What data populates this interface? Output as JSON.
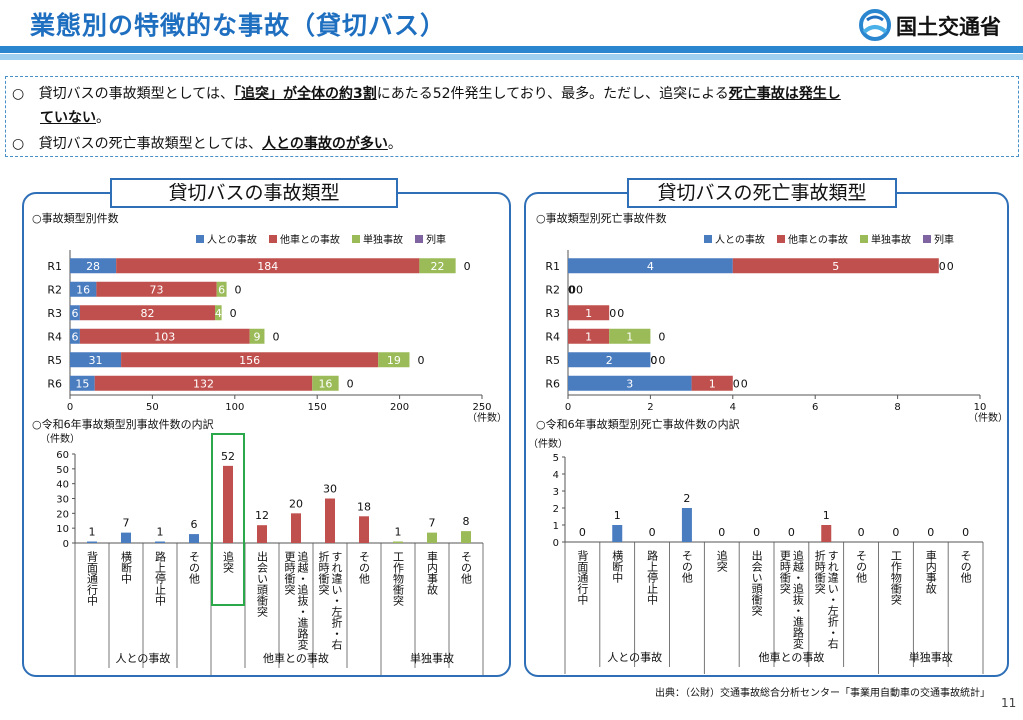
{
  "title": "業態別の特徴的な事故（貸切バス）",
  "logo": {
    "text": "国土交通省",
    "icon": "mlit-logo-icon"
  },
  "summary": {
    "bullet": "○",
    "l1a": "貸切バスの事故類型としては、",
    "l1b": "「追突」が全体の約3割",
    "l1c": "にあたる52件発生しており、最多。ただし、追突による",
    "l1d": "死亡事故は発生し",
    "l2": "ていない",
    "l2b": "。",
    "l3a": "貸切バスの死亡事故類型としては、",
    "l3b": "人との事故のが多い",
    "l3c": "。"
  },
  "panels": {
    "left_title": "貸切バスの事故類型",
    "right_title": "貸切バスの死亡事故類型"
  },
  "source": "出典：（公財）交通事故総合分析センター「事業用自動車の交通事故統計」",
  "page_number": "11",
  "colors": {
    "person": "#4a7cc0",
    "other_vehicle": "#c0504d",
    "single": "#9bbb59",
    "train": "#8064a2"
  },
  "chart_data": [
    {
      "type": "bar",
      "orientation": "horizontal",
      "stacked": true,
      "title": "○事故類型別件数",
      "categories": [
        "R1",
        "R2",
        "R3",
        "R4",
        "R5",
        "R6"
      ],
      "series": [
        {
          "name": "人との事故",
          "values": [
            28,
            16,
            6,
            6,
            31,
            15
          ]
        },
        {
          "name": "他車との事故",
          "values": [
            184,
            73,
            82,
            103,
            156,
            132
          ]
        },
        {
          "name": "単独事故",
          "values": [
            22,
            6,
            4,
            9,
            19,
            16
          ]
        },
        {
          "name": "列車",
          "values": [
            0,
            0,
            0,
            0,
            0,
            0
          ]
        }
      ],
      "xlim": [
        0,
        250
      ],
      "xticks": [
        "0",
        "50",
        "100",
        "150",
        "200",
        "250"
      ],
      "xlabel": "（件数）",
      "legend": "top-right"
    },
    {
      "type": "bar",
      "orientation": "horizontal",
      "stacked": true,
      "title": "○事故類型別死亡事故件数",
      "categories": [
        "R1",
        "R2",
        "R3",
        "R4",
        "R5",
        "R6"
      ],
      "series": [
        {
          "name": "人との事故",
          "values": [
            4,
            0,
            0,
            0,
            2,
            3
          ]
        },
        {
          "name": "他車との事故",
          "values": [
            5,
            0,
            1,
            1,
            0,
            1
          ]
        },
        {
          "name": "単独事故",
          "values": [
            0,
            0,
            0,
            1,
            0,
            0
          ]
        },
        {
          "name": "列車",
          "values": [
            0,
            0,
            0,
            0,
            0,
            0
          ]
        }
      ],
      "xlim": [
        0,
        10
      ],
      "xticks": [
        "0",
        "2",
        "4",
        "6",
        "8",
        "10"
      ],
      "xlabel": "（件数）",
      "legend": "top-right"
    },
    {
      "type": "bar",
      "title": "○令和6年事故類型別事故件数の内訳",
      "ylabel": "（件数）",
      "ylim": [
        0,
        60
      ],
      "yticks": [
        "0",
        "10",
        "20",
        "30",
        "40",
        "50",
        "60"
      ],
      "categories": [
        "背面通行中",
        "横断中",
        "路上停止中",
        "その他",
        "追突",
        "出会い頭衝突",
        "追越・追抜・進路変更時衝突",
        "すれ違い・左折・右折時衝突",
        "その他",
        "工作物衝突",
        "車内事故",
        "その他"
      ],
      "groups": [
        "人との事故",
        "人との事故",
        "人との事故",
        "人との事故",
        "他車との事故",
        "他車との事故",
        "他車との事故",
        "他車との事故",
        "他車との事故",
        "単独事故",
        "単独事故",
        "単独事故"
      ],
      "group_labels": [
        "人との事故",
        "他車との事故",
        "単独事故"
      ],
      "values": [
        1,
        7,
        1,
        6,
        52,
        12,
        20,
        30,
        18,
        1,
        7,
        8
      ],
      "highlight": "追突"
    },
    {
      "type": "bar",
      "title": "○令和6年事故類型別死亡事故件数の内訳",
      "ylabel": "（件数）",
      "ylim": [
        0,
        5
      ],
      "yticks": [
        "0",
        "1",
        "2",
        "3",
        "4",
        "5"
      ],
      "categories": [
        "背面通行中",
        "横断中",
        "路上停止中",
        "その他",
        "追突",
        "出会い頭衝突",
        "追越・追抜・進路変更時衝突",
        "すれ違い・左折・右折時衝突",
        "その他",
        "工作物衝突",
        "車内事故",
        "その他"
      ],
      "groups": [
        "人との事故",
        "人との事故",
        "人との事故",
        "人との事故",
        "他車との事故",
        "他車との事故",
        "他車との事故",
        "他車との事故",
        "他車との事故",
        "単独事故",
        "単独事故",
        "単独事故"
      ],
      "group_labels": [
        "人との事故",
        "他車との事故",
        "単独事故"
      ],
      "values": [
        0,
        1,
        0,
        2,
        0,
        0,
        0,
        1,
        0,
        0,
        0,
        0
      ]
    }
  ]
}
